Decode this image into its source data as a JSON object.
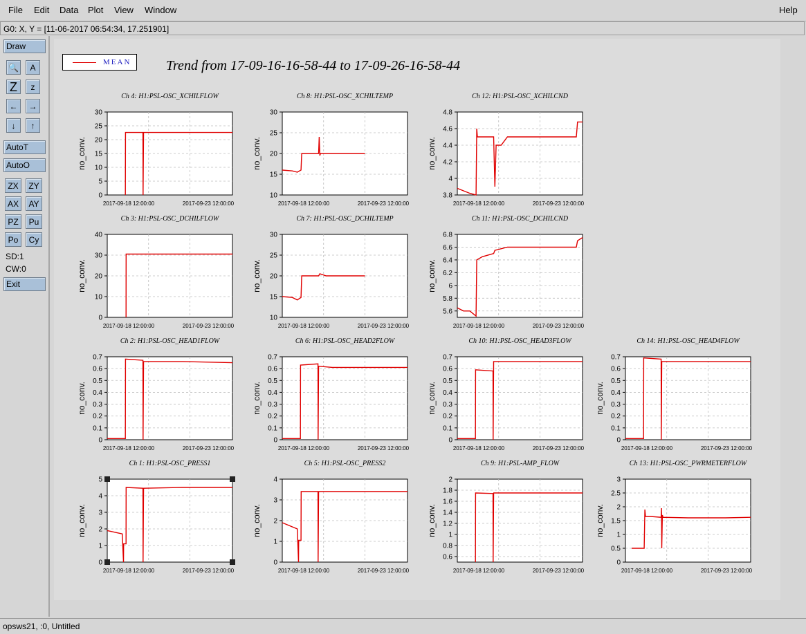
{
  "menu": {
    "file": "File",
    "edit": "Edit",
    "data": "Data",
    "plot": "Plot",
    "view": "View",
    "window": "Window",
    "help": "Help"
  },
  "coords": "G0: X, Y = [11-06-2017 06:54:34, 17.251901]",
  "toolbar": {
    "draw": "Draw",
    "autot": "AutoT",
    "autoo": "AutoO",
    "zx": "ZX",
    "zy": "ZY",
    "ax": "AX",
    "ay": "AY",
    "pz": "PZ",
    "pu": "Pu",
    "po": "Po",
    "cy": "Cy",
    "sd": "SD:1",
    "cw": "CW:0",
    "exit": "Exit",
    "tool_icons": [
      "magnify-icon",
      "text-icon",
      "zoom-large-icon",
      "zoom-small-icon",
      "arrow-left-icon",
      "arrow-right-icon",
      "arrow-down-icon",
      "arrow-up-icon"
    ],
    "icon_glyphs": [
      "🔍",
      "A",
      "Z",
      "z",
      "←",
      "→",
      "↓",
      "↑"
    ]
  },
  "status": "opsws21, :0, Untitled",
  "legend": {
    "label": "MEAN",
    "color": "#e00000"
  },
  "title": "Trend from 17-09-16-16-58-44 to 17-09-26-16-58-44",
  "chart_data": [
    {
      "type": "line",
      "title": "Ch 4: H1:PSL-OSC_XCHILFLOW",
      "ylabel": "no_conv.",
      "ylim": [
        0,
        30
      ],
      "yticks": [
        "0",
        "5",
        "10",
        "15",
        "20",
        "25",
        "30"
      ],
      "xticks": [
        "2017-09-18 12:00:00",
        "2017-09-23 12:00:00"
      ],
      "xlim": [
        0,
        10
      ],
      "x": [
        1.45,
        1.46,
        2.85,
        2.86,
        2.9,
        2.91,
        10
      ],
      "values": [
        0,
        22.6,
        22.6,
        0,
        22.6,
        22.6,
        22.6
      ]
    },
    {
      "type": "line",
      "title": "Ch 8: H1:PSL-OSC_XCHILTEMP",
      "ylabel": "no_conv.",
      "ylim": [
        10,
        30
      ],
      "yticks": [
        "10",
        "15",
        "20",
        "25",
        "30"
      ],
      "xticks": [
        "2017-09-18 12:00:00",
        "2017-09-23 12:00:00"
      ],
      "xlim": [
        0,
        10
      ],
      "x": [
        0,
        0.8,
        1.2,
        1.5,
        1.55,
        2,
        2.9,
        2.95,
        3.0,
        3.05,
        3.1,
        3.5,
        6.5,
        6.6
      ],
      "values": [
        16,
        15.8,
        15.5,
        16,
        20,
        20,
        20,
        24,
        19.5,
        20,
        20,
        20,
        20,
        20
      ]
    },
    {
      "type": "line",
      "title": "Ch 12: H1:PSL-OSC_XCHILCND",
      "ylabel": "no_conv.",
      "ylim": [
        3.8,
        4.8
      ],
      "yticks": [
        "3.8",
        "4",
        "4.2",
        "4.4",
        "4.6",
        "4.8"
      ],
      "xticks": [
        "2017-09-18 12:00:00",
        "2017-09-23 12:00:00"
      ],
      "xlim": [
        0,
        10
      ],
      "x": [
        0,
        0.5,
        1.0,
        1.5,
        1.55,
        1.6,
        2.0,
        2.5,
        2.9,
        3.0,
        3.1,
        3.5,
        4.0,
        6.0,
        8.0,
        9.5,
        9.6,
        10
      ],
      "values": [
        3.88,
        3.85,
        3.82,
        3.8,
        4.6,
        4.5,
        4.5,
        4.5,
        4.5,
        3.9,
        4.4,
        4.4,
        4.5,
        4.5,
        4.5,
        4.5,
        4.68,
        4.68
      ]
    },
    {
      "type": "line",
      "title": "Ch 3: H1:PSL-OSC_DCHILFLOW",
      "ylabel": "no_conv.",
      "ylim": [
        0,
        40
      ],
      "yticks": [
        "0",
        "10",
        "20",
        "30",
        "40"
      ],
      "xticks": [
        "2017-09-18 12:00:00",
        "2017-09-23 12:00:00"
      ],
      "xlim": [
        0,
        10
      ],
      "x": [
        1.5,
        1.51,
        10
      ],
      "values": [
        0,
        30.5,
        30.5
      ]
    },
    {
      "type": "line",
      "title": "Ch 7: H1:PSL-OSC_DCHILTEMP",
      "ylabel": "no_conv.",
      "ylim": [
        10,
        30
      ],
      "yticks": [
        "10",
        "15",
        "20",
        "25",
        "30"
      ],
      "xticks": [
        "2017-09-18 12:00:00",
        "2017-09-23 12:00:00"
      ],
      "xlim": [
        0,
        10
      ],
      "x": [
        0,
        0.8,
        1.2,
        1.5,
        1.55,
        2,
        2.9,
        3.0,
        3.5,
        6.5,
        6.6
      ],
      "values": [
        15,
        14.8,
        14.2,
        14.8,
        20,
        20,
        20,
        20.5,
        20,
        20,
        20
      ]
    },
    {
      "type": "line",
      "title": "Ch 11: H1:PSL-OSC_DCHILCND",
      "ylabel": "no_conv.",
      "ylim": [
        5.5,
        6.8
      ],
      "yticks": [
        "5.6",
        "5.8",
        "6",
        "6.2",
        "6.4",
        "6.6",
        "6.8"
      ],
      "xticks": [
        "2017-09-18 12:00:00",
        "2017-09-23 12:00:00"
      ],
      "xlim": [
        0,
        10
      ],
      "x": [
        0,
        0.5,
        1.0,
        1.5,
        1.55,
        2.0,
        2.9,
        3.0,
        4.0,
        6.0,
        9.5,
        9.6,
        10
      ],
      "values": [
        5.65,
        5.6,
        5.6,
        5.52,
        6.4,
        6.45,
        6.5,
        6.55,
        6.6,
        6.6,
        6.6,
        6.7,
        6.75
      ]
    },
    {
      "type": "line",
      "title": "Ch 2: H1:PSL-OSC_HEAD1FLOW",
      "ylabel": "no_conv.",
      "ylim": [
        0,
        0.7
      ],
      "yticks": [
        "0",
        "0.1",
        "0.2",
        "0.3",
        "0.4",
        "0.5",
        "0.6",
        "0.7"
      ],
      "xticks": [
        "2017-09-18 12:00:00",
        "2017-09-23 12:00:00"
      ],
      "xlim": [
        0,
        10
      ],
      "x": [
        0,
        1.45,
        1.46,
        2.85,
        2.86,
        2.9,
        2.91,
        6,
        10
      ],
      "values": [
        0.01,
        0.01,
        0.68,
        0.67,
        0,
        0.66,
        0.66,
        0.66,
        0.65
      ]
    },
    {
      "type": "line",
      "title": "Ch 6: H1:PSL-OSC_HEAD2FLOW",
      "ylabel": "no_conv.",
      "ylim": [
        0,
        0.7
      ],
      "yticks": [
        "0",
        "0.1",
        "0.2",
        "0.3",
        "0.4",
        "0.5",
        "0.6",
        "0.7"
      ],
      "xticks": [
        "2017-09-18 12:00:00",
        "2017-09-23 12:00:00"
      ],
      "xlim": [
        0,
        10
      ],
      "x": [
        0,
        1.45,
        1.46,
        2.85,
        2.86,
        2.9,
        2.91,
        4,
        6,
        10
      ],
      "values": [
        0.01,
        0.01,
        0.63,
        0.64,
        0,
        0.62,
        0.62,
        0.61,
        0.61,
        0.61
      ]
    },
    {
      "type": "line",
      "title": "Ch 10: H1:PSL-OSC_HEAD3FLOW",
      "ylabel": "no_conv.",
      "ylim": [
        0,
        0.7
      ],
      "yticks": [
        "0",
        "0.1",
        "0.2",
        "0.3",
        "0.4",
        "0.5",
        "0.6",
        "0.7"
      ],
      "xticks": [
        "2017-09-18 12:00:00",
        "2017-09-23 12:00:00"
      ],
      "xlim": [
        0,
        10
      ],
      "x": [
        0,
        1.45,
        1.46,
        2.85,
        2.86,
        2.9,
        2.91,
        6,
        10
      ],
      "values": [
        0.01,
        0.01,
        0.59,
        0.58,
        0,
        0.66,
        0.66,
        0.66,
        0.66
      ]
    },
    {
      "type": "line",
      "title": "Ch 14: H1:PSL-OSC_HEAD4FLOW",
      "ylabel": "no_conv.",
      "ylim": [
        0,
        0.7
      ],
      "yticks": [
        "0",
        "0.1",
        "0.2",
        "0.3",
        "0.4",
        "0.5",
        "0.6",
        "0.7"
      ],
      "xticks": [
        "2017-09-18 12:00:00",
        "2017-09-23 12:00:00"
      ],
      "xlim": [
        0,
        10
      ],
      "x": [
        0,
        1.45,
        1.46,
        2.85,
        2.86,
        2.9,
        2.91,
        6,
        10
      ],
      "values": [
        0.01,
        0.01,
        0.69,
        0.68,
        0,
        0.66,
        0.66,
        0.66,
        0.66
      ]
    },
    {
      "type": "line",
      "title": "Ch 1: H1:PSL-OSC_PRESS1",
      "ylabel": "no_conv.",
      "ylim": [
        0,
        5
      ],
      "yticks": [
        "0",
        "1",
        "2",
        "3",
        "4",
        "5"
      ],
      "xticks": [
        "2017-09-18 12:00:00",
        "2017-09-23 12:00:00"
      ],
      "xlim": [
        0,
        10
      ],
      "x": [
        0,
        1.2,
        1.3,
        1.31,
        1.5,
        1.51,
        2.85,
        2.86,
        2.9,
        2.91,
        6,
        10
      ],
      "values": [
        1.9,
        1.7,
        0,
        1.1,
        1.1,
        4.5,
        4.45,
        0,
        4.4,
        4.45,
        4.5,
        4.5
      ]
    },
    {
      "type": "line",
      "title": "Ch 5: H1:PSL-OSC_PRESS2",
      "ylabel": "no_conv.",
      "ylim": [
        0,
        4
      ],
      "yticks": [
        "0",
        "1",
        "2",
        "3",
        "4"
      ],
      "xticks": [
        "2017-09-18 12:00:00",
        "2017-09-23 12:00:00"
      ],
      "xlim": [
        0,
        10
      ],
      "x": [
        0,
        1.2,
        1.3,
        1.31,
        1.5,
        1.51,
        2.85,
        2.86,
        2.9,
        2.91,
        6,
        10
      ],
      "values": [
        1.9,
        1.6,
        0,
        1.05,
        1.05,
        3.4,
        3.4,
        0,
        3.35,
        3.4,
        3.4,
        3.4
      ]
    },
    {
      "type": "line",
      "title": "Ch 9: H1:PSL-AMP_FLOW",
      "ylabel": "no_conv.",
      "ylim": [
        0.5,
        2
      ],
      "yticks": [
        "0.6",
        "0.8",
        "1",
        "1.2",
        "1.4",
        "1.6",
        "1.8",
        "2"
      ],
      "xticks": [
        "2017-09-18 12:00:00",
        "2017-09-23 12:00:00"
      ],
      "xlim": [
        0,
        10
      ],
      "x": [
        1.45,
        1.46,
        2.85,
        2.86,
        2.9,
        2.91,
        6,
        10
      ],
      "values": [
        0.5,
        1.75,
        1.74,
        0.5,
        1.74,
        1.75,
        1.75,
        1.75
      ]
    },
    {
      "type": "line",
      "title": "Ch 13: H1:PSL-OSC_PWRMETERFLOW",
      "ylabel": "no_conv.",
      "ylim": [
        0,
        3
      ],
      "yticks": [
        "0",
        "0.5",
        "1",
        "1.5",
        "2",
        "2.5",
        "3"
      ],
      "xticks": [
        "2017-09-18 12:00:00",
        "2017-09-23 12:00:00"
      ],
      "xlim": [
        0,
        10
      ],
      "x": [
        0.5,
        1.5,
        1.55,
        1.6,
        2.0,
        2.85,
        2.88,
        2.9,
        2.95,
        3.0,
        5.0,
        8.0,
        10
      ],
      "values": [
        0.5,
        0.5,
        1.9,
        1.65,
        1.65,
        1.62,
        1.95,
        0.5,
        1.7,
        1.62,
        1.6,
        1.6,
        1.62
      ]
    }
  ]
}
